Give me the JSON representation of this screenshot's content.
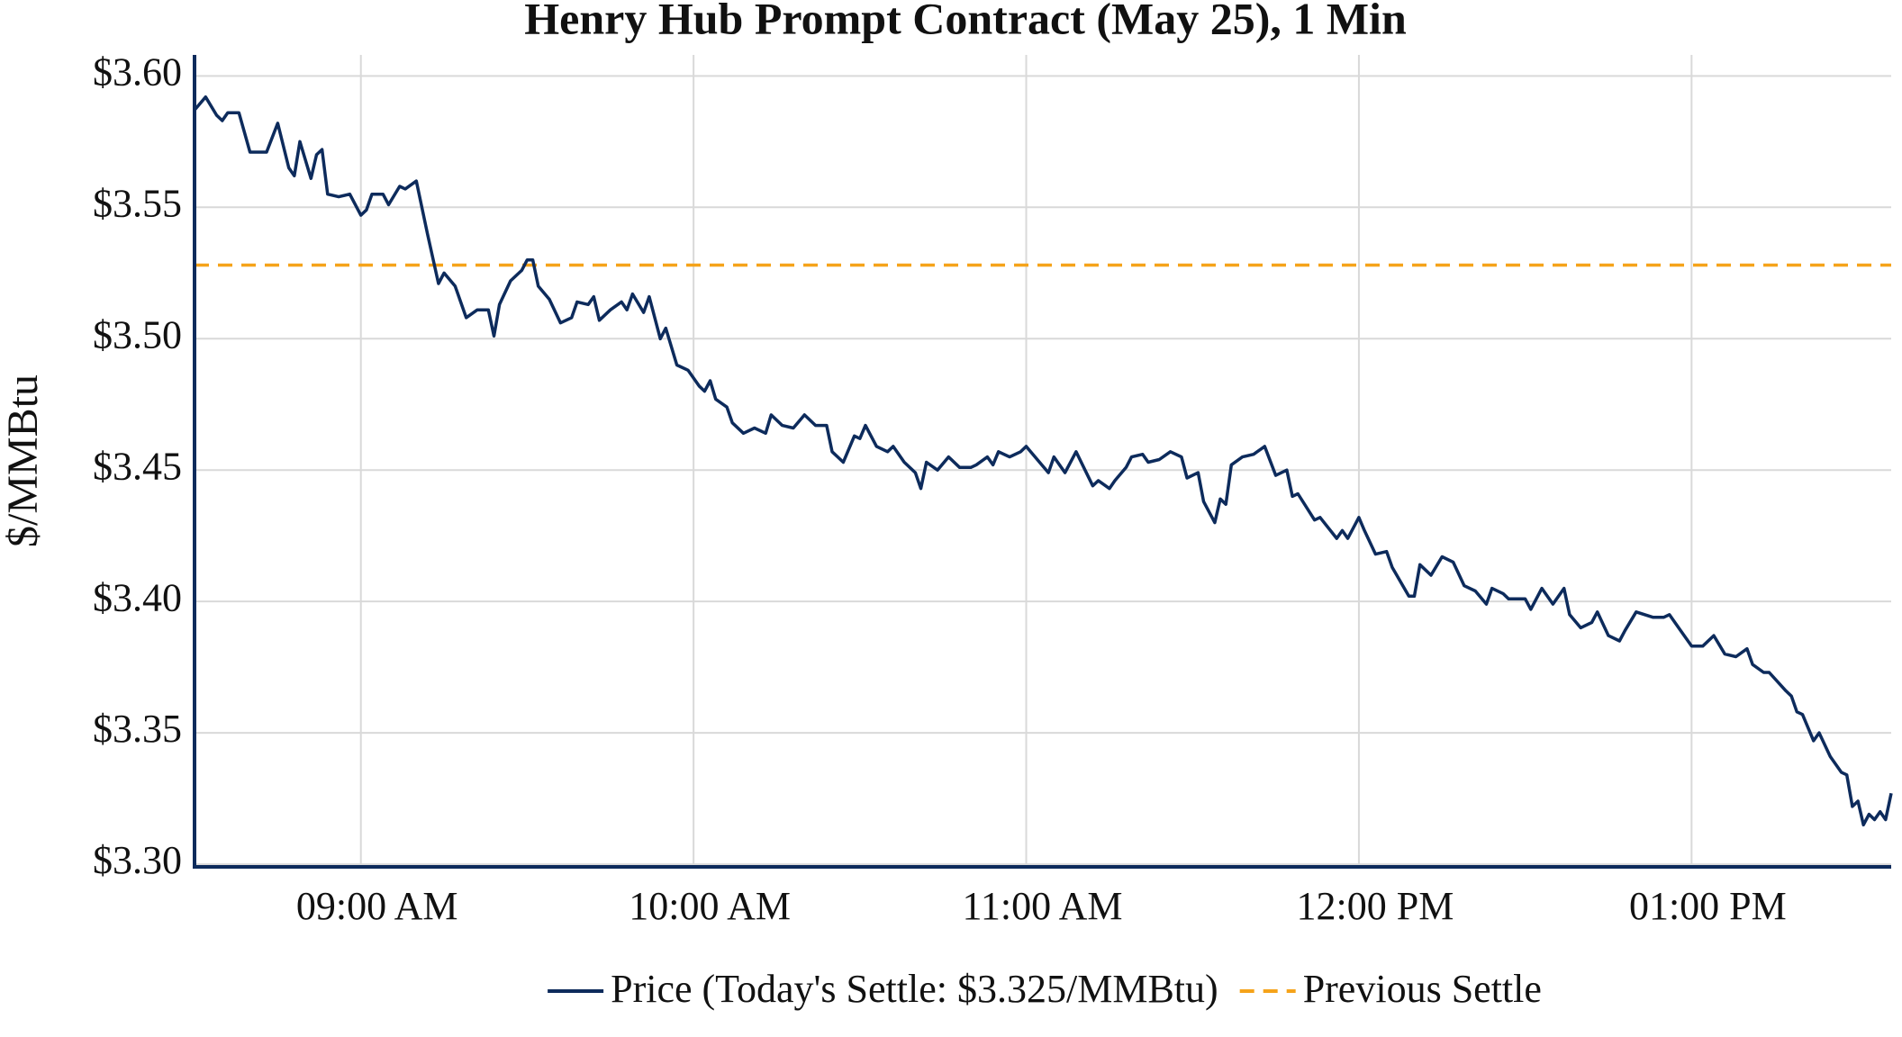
{
  "chart_data": {
    "type": "line",
    "title": "Henry Hub Prompt Contract (May 25), 1 Min",
    "y_label": "$/MMBtu",
    "x": [
      "08:30 AM",
      "08:32 AM",
      "08:34 AM",
      "08:35 AM",
      "08:36 AM",
      "08:38 AM",
      "08:40 AM",
      "08:43 AM",
      "08:45 AM",
      "08:47 AM",
      "08:48 AM",
      "08:49 AM",
      "08:51 AM",
      "08:52 AM",
      "08:53 AM",
      "08:54 AM",
      "08:56 AM",
      "08:58 AM",
      "09:00 AM",
      "09:01 AM",
      "09:02 AM",
      "09:04 AM",
      "09:05 AM",
      "09:07 AM",
      "09:08 AM",
      "09:10 AM",
      "09:12 AM",
      "09:14 AM",
      "09:15 AM",
      "09:17 AM",
      "09:19 AM",
      "09:21 AM",
      "09:23 AM",
      "09:24 AM",
      "09:25 AM",
      "09:27 AM",
      "09:29 AM",
      "09:30 AM",
      "09:31 AM",
      "09:32 AM",
      "09:34 AM",
      "09:36 AM",
      "09:38 AM",
      "09:39 AM",
      "09:41 AM",
      "09:42 AM",
      "09:43 AM",
      "09:45 AM",
      "09:47 AM",
      "09:48 AM",
      "09:49 AM",
      "09:51 AM",
      "09:52 AM",
      "09:54 AM",
      "09:55 AM",
      "09:57 AM",
      "09:59 AM",
      "10:01 AM",
      "10:02 AM",
      "10:03 AM",
      "10:04 AM",
      "10:06 AM",
      "10:07 AM",
      "10:09 AM",
      "10:11 AM",
      "10:13 AM",
      "10:14 AM",
      "10:16 AM",
      "10:18 AM",
      "10:20 AM",
      "10:22 AM",
      "10:24 AM",
      "10:25 AM",
      "10:27 AM",
      "10:29 AM",
      "10:30 AM",
      "10:31 AM",
      "10:33 AM",
      "10:35 AM",
      "10:36 AM",
      "10:38 AM",
      "10:40 AM",
      "10:41 AM",
      "10:42 AM",
      "10:44 AM",
      "10:46 AM",
      "10:48 AM",
      "10:50 AM",
      "10:51 AM",
      "10:53 AM",
      "10:54 AM",
      "10:55 AM",
      "10:57 AM",
      "10:59 AM",
      "11:00 AM",
      "11:02 AM",
      "11:04 AM",
      "11:05 AM",
      "11:07 AM",
      "11:09 AM",
      "11:12 AM",
      "11:13 AM",
      "11:15 AM",
      "11:16 AM",
      "11:18 AM",
      "11:19 AM",
      "11:21 AM",
      "11:22 AM",
      "11:24 AM",
      "11:26 AM",
      "11:28 AM",
      "11:29 AM",
      "11:31 AM",
      "11:32 AM",
      "11:34 AM",
      "11:35 AM",
      "11:36 AM",
      "11:37 AM",
      "11:39 AM",
      "11:41 AM",
      "11:43 AM",
      "11:45 AM",
      "11:47 AM",
      "11:48 AM",
      "11:49 AM",
      "11:52 AM",
      "11:53 AM",
      "11:56 AM",
      "11:57 AM",
      "11:58 AM",
      "12:00 PM",
      "12:01 PM",
      "12:03 PM",
      "12:05 PM",
      "12:06 PM",
      "12:09 PM",
      "12:10 PM",
      "12:11 PM",
      "12:13 PM",
      "12:15 PM",
      "12:17 PM",
      "12:19 PM",
      "12:21 PM",
      "12:23 PM",
      "12:24 PM",
      "12:26 PM",
      "12:27 PM",
      "12:30 PM",
      "12:31 PM",
      "12:33 PM",
      "12:35 PM",
      "12:37 PM",
      "12:38 PM",
      "12:40 PM",
      "12:42 PM",
      "12:43 PM",
      "12:45 PM",
      "12:47 PM",
      "12:48 PM",
      "12:50 PM",
      "12:53 PM",
      "12:55 PM",
      "12:56 PM",
      "12:58 PM",
      "01:00 PM",
      "01:02 PM",
      "01:04 PM",
      "01:06 PM",
      "01:08 PM",
      "01:10 PM",
      "01:11 PM",
      "01:13 PM",
      "01:14 PM",
      "01:17 PM",
      "01:18 PM",
      "01:19 PM",
      "01:20 PM",
      "01:22 PM",
      "01:23 PM",
      "01:25 PM",
      "01:27 PM",
      "01:28 PM",
      "01:29 PM",
      "01:30 PM",
      "01:31 PM",
      "01:32 PM",
      "01:33 PM",
      "01:34 PM",
      "01:35 PM",
      "01:36 PM"
    ],
    "series": [
      {
        "name": "Price (Today's Settle: $3.325/MMBtu)",
        "color": "#0d2b5c",
        "values": [
          3.587,
          3.592,
          3.585,
          3.583,
          3.586,
          3.586,
          3.571,
          3.571,
          3.582,
          3.565,
          3.562,
          3.575,
          3.561,
          3.57,
          3.572,
          3.555,
          3.554,
          3.555,
          3.547,
          3.549,
          3.555,
          3.555,
          3.551,
          3.558,
          3.557,
          3.56,
          3.54,
          3.521,
          3.525,
          3.52,
          3.508,
          3.511,
          3.511,
          3.501,
          3.513,
          3.522,
          3.526,
          3.53,
          3.53,
          3.52,
          3.515,
          3.506,
          3.508,
          3.514,
          3.513,
          3.516,
          3.507,
          3.511,
          3.514,
          3.511,
          3.517,
          3.51,
          3.516,
          3.5,
          3.504,
          3.49,
          3.488,
          3.482,
          3.48,
          3.484,
          3.477,
          3.474,
          3.468,
          3.464,
          3.466,
          3.464,
          3.471,
          3.467,
          3.466,
          3.471,
          3.467,
          3.467,
          3.457,
          3.453,
          3.463,
          3.462,
          3.467,
          3.459,
          3.457,
          3.459,
          3.453,
          3.449,
          3.443,
          3.453,
          3.45,
          3.455,
          3.451,
          3.451,
          3.452,
          3.455,
          3.452,
          3.457,
          3.455,
          3.457,
          3.459,
          3.454,
          3.449,
          3.455,
          3.449,
          3.457,
          3.444,
          3.446,
          3.443,
          3.446,
          3.451,
          3.455,
          3.456,
          3.453,
          3.454,
          3.457,
          3.455,
          3.447,
          3.449,
          3.438,
          3.43,
          3.439,
          3.437,
          3.452,
          3.455,
          3.456,
          3.459,
          3.448,
          3.45,
          3.44,
          3.441,
          3.431,
          3.432,
          3.424,
          3.427,
          3.424,
          3.432,
          3.427,
          3.418,
          3.419,
          3.413,
          3.402,
          3.402,
          3.414,
          3.41,
          3.417,
          3.415,
          3.406,
          3.404,
          3.399,
          3.405,
          3.403,
          3.401,
          3.401,
          3.397,
          3.405,
          3.399,
          3.405,
          3.395,
          3.39,
          3.392,
          3.396,
          3.387,
          3.385,
          3.389,
          3.396,
          3.394,
          3.394,
          3.395,
          3.389,
          3.383,
          3.383,
          3.387,
          3.38,
          3.379,
          3.382,
          3.376,
          3.373,
          3.373,
          3.366,
          3.364,
          3.358,
          3.357,
          3.347,
          3.35,
          3.341,
          3.335,
          3.334,
          3.322,
          3.324,
          3.315,
          3.319,
          3.317,
          3.32,
          3.317,
          3.327
        ]
      }
    ],
    "reference_lines": [
      {
        "name": "Previous Settle",
        "value": 3.528,
        "color": "#f5a31a",
        "dashed": true
      }
    ],
    "xlim": [
      "08:30 AM",
      "01:36 PM"
    ],
    "xticks": [
      "09:00 AM",
      "10:00 AM",
      "11:00 AM",
      "12:00 PM",
      "01:00 PM"
    ],
    "ylim": [
      3.299,
      3.608
    ],
    "yticks": [
      {
        "value": 3.3,
        "label": "$3.30"
      },
      {
        "value": 3.35,
        "label": "$3.35"
      },
      {
        "value": 3.4,
        "label": "$3.40"
      },
      {
        "value": 3.45,
        "label": "$3.45"
      },
      {
        "value": 3.5,
        "label": "$3.50"
      },
      {
        "value": 3.55,
        "label": "$3.55"
      },
      {
        "value": 3.6,
        "label": "$3.60"
      }
    ],
    "grid": true,
    "legend": "bottom"
  }
}
